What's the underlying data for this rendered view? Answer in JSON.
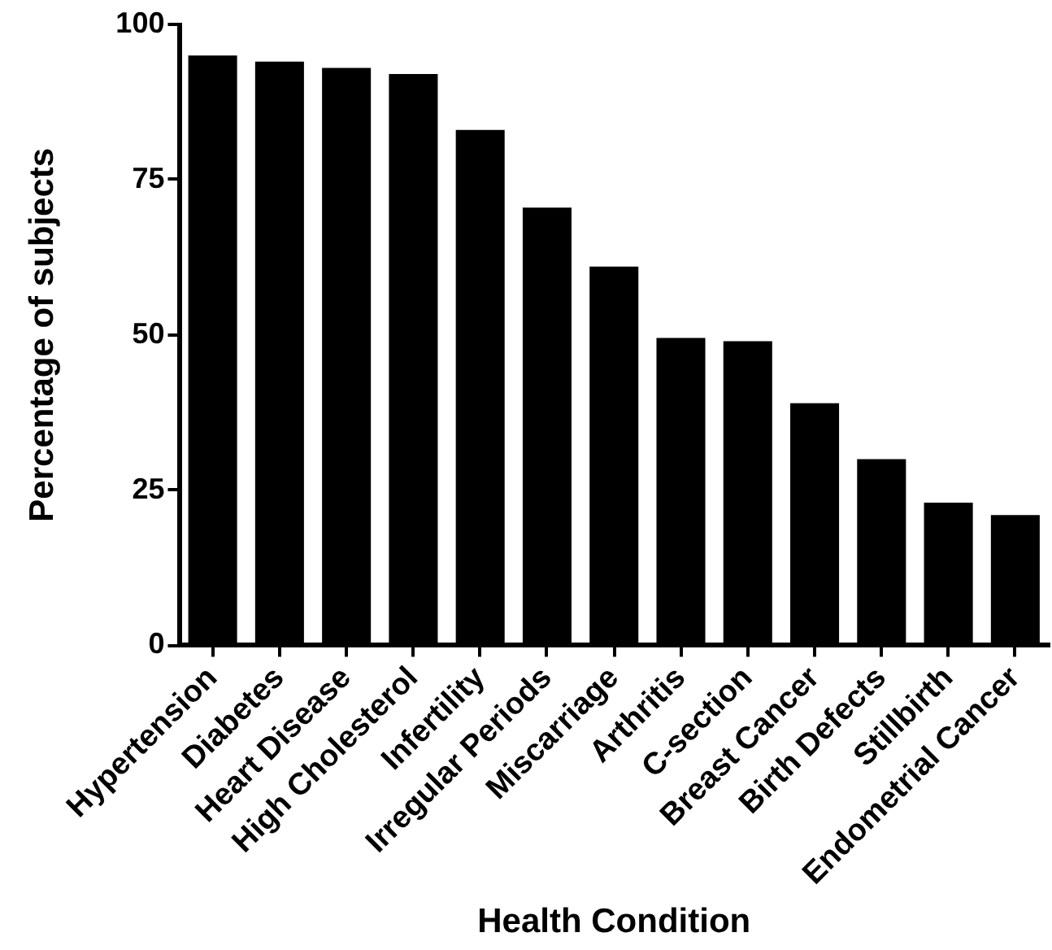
{
  "chart_data": {
    "type": "bar",
    "xlabel": "Health Condition",
    "ylabel": "Percentage of subjects",
    "categories": [
      "Hypertension",
      "Diabetes",
      "Heart Disease",
      "High Cholesterol",
      "Infertility",
      "Irregular Periods",
      "Miscarriage",
      "Arthritis",
      "C-section",
      "Breast Cancer",
      "Birth Defects",
      "Stillbirth",
      "Endometrial Cancer"
    ],
    "values": [
      95,
      94,
      93,
      92,
      83,
      70.5,
      61,
      49.5,
      49,
      39,
      30,
      23,
      21
    ],
    "color": "#000000",
    "ylim": [
      0,
      100
    ],
    "yticks": [
      0,
      25,
      50,
      75,
      100
    ],
    "grid": false
  }
}
